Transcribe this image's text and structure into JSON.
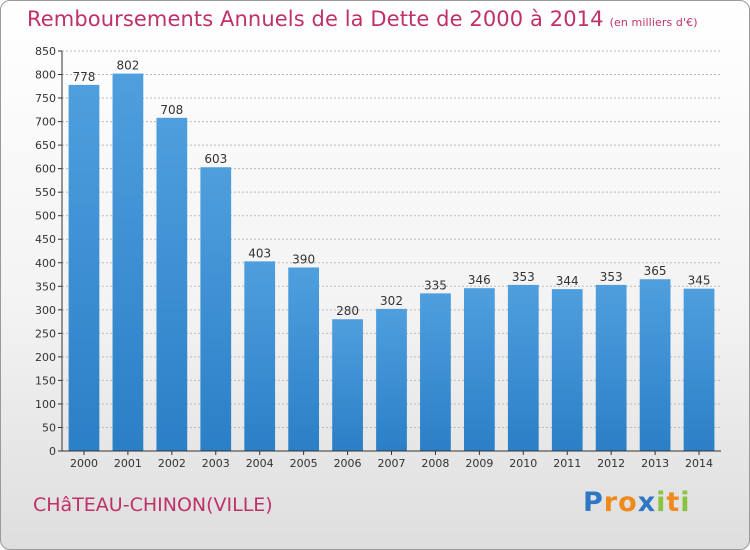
{
  "chart_data": {
    "type": "bar",
    "title": "Remboursements Annuels de la Dette de 2000 à 2014",
    "subtitle": "(en milliers d'€)",
    "categories": [
      "2000",
      "2001",
      "2002",
      "2003",
      "2004",
      "2005",
      "2006",
      "2007",
      "2008",
      "2009",
      "2010",
      "2011",
      "2012",
      "2013",
      "2014"
    ],
    "values": [
      778,
      802,
      708,
      603,
      403,
      390,
      280,
      302,
      335,
      346,
      353,
      344,
      353,
      365,
      345
    ],
    "ylim": [
      0,
      850
    ],
    "yticks": [
      0,
      50,
      100,
      150,
      200,
      250,
      300,
      350,
      400,
      450,
      500,
      550,
      600,
      650,
      700,
      750,
      800,
      850
    ],
    "grid": true,
    "bar_color": "#4f9fde",
    "bar_color_dark": "#2a7fc6"
  },
  "footer": {
    "town": "CHâTEAU-CHINON(VILLE)"
  },
  "logo": {
    "letters": [
      "P",
      "r",
      "o",
      "x",
      "i",
      "t",
      "i"
    ],
    "colors": [
      "#2f77c4",
      "#f08a1c",
      "#f08a1c",
      "#2f77c4",
      "#8ac43f",
      "#f08a1c",
      "#8ac43f"
    ]
  },
  "colors": {
    "title": "#c0306b",
    "axis": "#333333",
    "grid": "#bbbbbb"
  }
}
